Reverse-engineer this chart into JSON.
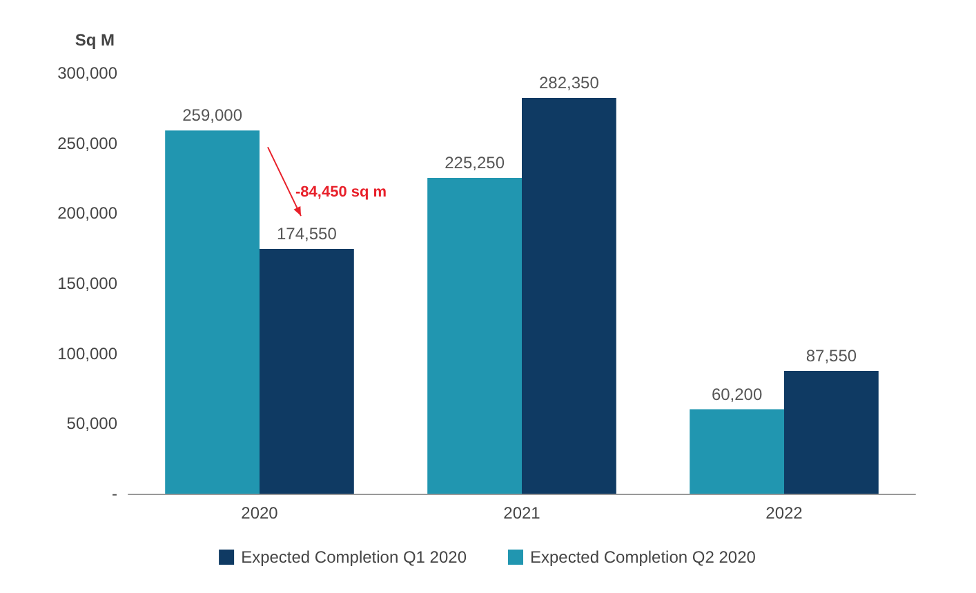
{
  "chart_data": {
    "type": "bar",
    "ylabel": "Sq M",
    "categories": [
      "2020",
      "2021",
      "2022"
    ],
    "series": [
      {
        "name": "Expected Completion Q2 2020",
        "color": "#2196b0",
        "values": [
          259000,
          225250,
          60200
        ],
        "value_labels": [
          "259,000",
          "225,250",
          "60,200"
        ]
      },
      {
        "name": "Expected Completion Q1 2020",
        "color": "#0f3a63",
        "values": [
          174550,
          282350,
          87550
        ],
        "value_labels": [
          "174,550",
          "282,350",
          "87,550"
        ]
      }
    ],
    "ylim": [
      0,
      300000
    ],
    "yticks": [
      {
        "value": 0,
        "label": "-"
      },
      {
        "value": 50000,
        "label": "50,000"
      },
      {
        "value": 100000,
        "label": "100,000"
      },
      {
        "value": 150000,
        "label": "150,000"
      },
      {
        "value": 200000,
        "label": "200,000"
      },
      {
        "value": 250000,
        "label": "250,000"
      },
      {
        "value": 300000,
        "label": "300,000"
      }
    ],
    "grid": false,
    "legend": "bottom",
    "annotations": [
      {
        "text": "-84,450 sq m",
        "x": "2020",
        "y": 215000
      }
    ]
  }
}
